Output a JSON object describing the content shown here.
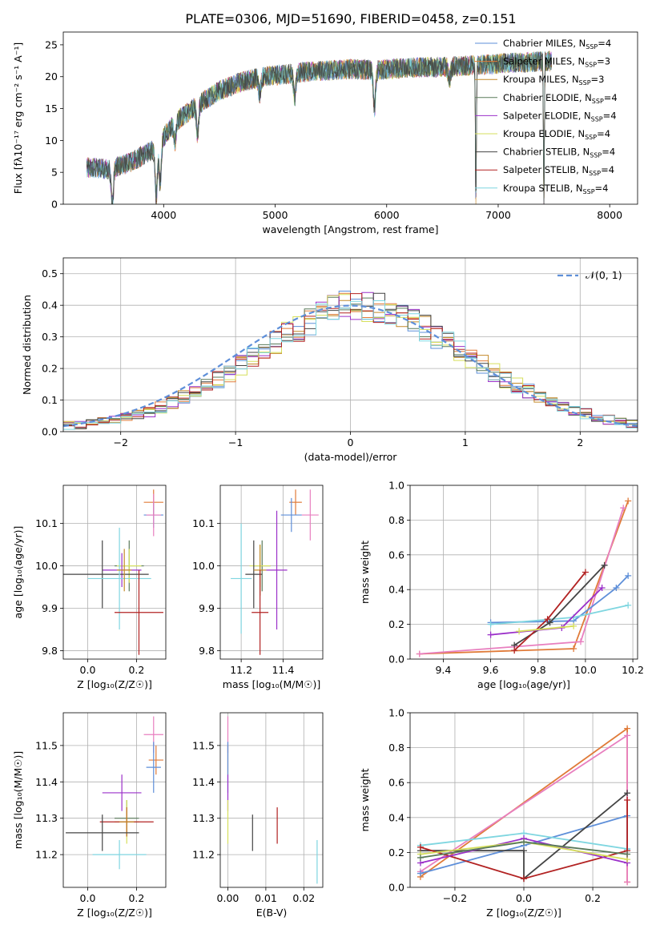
{
  "figure_title": "PLATE=0306, MJD=51690, FIBERID=0458, z=0.151",
  "colors": {
    "chabrier_miles": "#5e8fd9",
    "salpeter_miles": "#e07b39",
    "kroupa_miles": "#c48a2a",
    "chabrier_elodie": "#5a7a5a",
    "salpeter_elodie": "#9b30c9",
    "kroupa_elodie": "#d6df5c",
    "chabrier_stelib": "#444444",
    "salpeter_stelib": "#b22222",
    "kroupa_stelib": "#7fd6e0",
    "pink": "#e87fbf",
    "normal": "#5e8fd9"
  },
  "chart_data": [
    {
      "id": "spectrum",
      "type": "line",
      "title": "PLATE=0306, MJD=51690, FIBERID=0458, z=0.151",
      "xlabel": "wavelength [Angstrom, rest frame]",
      "ylabel": "Flux [fλ10⁻¹⁷ erg cm⁻² s⁻¹ A⁻¹]",
      "xlim": [
        3100,
        8250
      ],
      "ylim": [
        0,
        27
      ],
      "xticks": [
        4000,
        5000,
        6000,
        7000,
        8000
      ],
      "yticks": [
        0,
        5,
        10,
        15,
        20,
        25
      ],
      "grid": false,
      "legend_position": "top-right",
      "continuum": {
        "x": [
          3300,
          3500,
          3700,
          3900,
          4000,
          4100,
          4300,
          4500,
          4700,
          4900,
          5100,
          5300,
          5500,
          5700,
          5900,
          6100,
          6300,
          6500,
          6700,
          6900,
          7100,
          7300,
          7500
        ],
        "y": [
          5.8,
          5.5,
          6.5,
          8.5,
          10.5,
          12.8,
          15.5,
          17.8,
          19.2,
          20.0,
          20.4,
          20.8,
          21.0,
          21.2,
          21.0,
          21.3,
          21.5,
          21.5,
          21.7,
          21.9,
          22.2,
          22.3,
          22.5
        ]
      },
      "series": [
        {
          "name": "Chabrier MILES, N_SSP=4",
          "label_main": "Chabrier MILES, N",
          "label_sub": "SSP",
          "label_tail": "=4",
          "color_key": "chabrier_miles"
        },
        {
          "name": "Salpeter MILES, N_SSP=3",
          "label_main": "Salpeter MILES, N",
          "label_sub": "SSP",
          "label_tail": "=3",
          "color_key": "salpeter_miles"
        },
        {
          "name": "Kroupa MILES, N_SSP=3",
          "label_main": "Kroupa MILES, N",
          "label_sub": "SSP",
          "label_tail": "=3",
          "color_key": "kroupa_miles"
        },
        {
          "name": "Chabrier ELODIE, N_SSP=4",
          "label_main": "Chabrier ELODIE, N",
          "label_sub": "SSP",
          "label_tail": "=4",
          "color_key": "chabrier_elodie"
        },
        {
          "name": "Salpeter ELODIE, N_SSP=4",
          "label_main": "Salpeter ELODIE, N",
          "label_sub": "SSP",
          "label_tail": "=4",
          "color_key": "salpeter_elodie"
        },
        {
          "name": "Kroupa ELODIE, N_SSP=4",
          "label_main": "Kroupa ELODIE, N",
          "label_sub": "SSP",
          "label_tail": "=4",
          "color_key": "kroupa_elodie"
        },
        {
          "name": "Chabrier STELIB, N_SSP=4",
          "label_main": "Chabrier STELIB, N",
          "label_sub": "SSP",
          "label_tail": "=4",
          "color_key": "chabrier_stelib"
        },
        {
          "name": "Salpeter STELIB, N_SSP=4",
          "label_main": "Salpeter STELIB, N",
          "label_sub": "SSP",
          "label_tail": "=4",
          "color_key": "salpeter_stelib"
        },
        {
          "name": "Kroupa STELIB, N_SSP=4",
          "label_main": "Kroupa STELIB, N",
          "label_sub": "SSP",
          "label_tail": "=4",
          "color_key": "kroupa_stelib"
        }
      ],
      "absorption_features": [
        {
          "x": 3540,
          "depth": 5.8
        },
        {
          "x": 3934,
          "depth": 8.0
        },
        {
          "x": 3969,
          "depth": 6.5
        },
        {
          "x": 4102,
          "depth": 3.0
        },
        {
          "x": 4304,
          "depth": 4.5
        },
        {
          "x": 4861,
          "depth": 2.5
        },
        {
          "x": 5175,
          "depth": 4.0
        },
        {
          "x": 5890,
          "depth": 6.0
        },
        {
          "x": 6563,
          "depth": 2.0
        },
        {
          "x": 6800,
          "depth": 22.0
        },
        {
          "x": 7410,
          "depth": 23.0
        }
      ]
    },
    {
      "id": "residuals",
      "type": "step",
      "xlabel": "(data-model)/error",
      "ylabel": "Normed distribution",
      "xlim": [
        -2.5,
        2.5
      ],
      "ylim": [
        0,
        0.55
      ],
      "xticks": [
        -2,
        -1,
        0,
        1,
        2
      ],
      "yticks": [
        0.0,
        0.1,
        0.2,
        0.3,
        0.4,
        0.5
      ],
      "grid": true,
      "legend_position": "top-right",
      "normal_label": "𝒩(0, 1)",
      "bin_width": 0.1,
      "bin_start": -2.5,
      "histogram_series_keys": [
        "chabrier_miles",
        "salpeter_miles",
        "kroupa_miles",
        "chabrier_elodie",
        "salpeter_elodie",
        "kroupa_elodie",
        "chabrier_stelib",
        "salpeter_stelib",
        "kroupa_stelib"
      ],
      "base_profile": [
        0.02,
        0.022,
        0.026,
        0.031,
        0.038,
        0.045,
        0.054,
        0.064,
        0.077,
        0.092,
        0.108,
        0.125,
        0.144,
        0.163,
        0.186,
        0.21,
        0.234,
        0.258,
        0.283,
        0.306,
        0.328,
        0.35,
        0.37,
        0.384,
        0.396,
        0.404,
        0.398,
        0.39,
        0.378,
        0.364,
        0.347,
        0.327,
        0.305,
        0.282,
        0.258,
        0.235,
        0.211,
        0.188,
        0.166,
        0.146,
        0.127,
        0.109,
        0.094,
        0.08,
        0.067,
        0.057,
        0.047,
        0.038,
        0.031,
        0.025
      ]
    },
    {
      "id": "age_vs_Z",
      "type": "errorbar",
      "xlabel": "Z [log₁₀(Z/Z☉)]",
      "ylabel": "age  [log₁₀(age/yr)]",
      "xlim": [
        -0.1,
        0.32
      ],
      "ylim": [
        9.78,
        10.19
      ],
      "xticks": [
        0.0,
        0.2
      ],
      "yticks": [
        9.8,
        9.9,
        10.0,
        10.1
      ],
      "grid": true,
      "points": [
        {
          "color_key": "salpeter_miles",
          "x": 0.27,
          "y": 10.15,
          "xerr": 0.04,
          "yerr": 0.03
        },
        {
          "color_key": "chabrier_miles",
          "x": 0.27,
          "y": 10.12,
          "xerr": 0.04,
          "yerr": 0.03
        },
        {
          "color_key": "pink",
          "x": 0.27,
          "y": 10.12,
          "xerr": 0.03,
          "yerr": 0.05
        },
        {
          "color_key": "chabrier_elodie",
          "x": 0.17,
          "y": 10.0,
          "xerr": 0.06,
          "yerr": 0.06
        },
        {
          "color_key": "kroupa_elodie",
          "x": 0.17,
          "y": 10.0,
          "xerr": 0.05,
          "yerr": 0.04
        },
        {
          "color_key": "salpeter_elodie",
          "x": 0.14,
          "y": 9.99,
          "xerr": 0.08,
          "yerr": 0.04
        },
        {
          "color_key": "chabrier_stelib",
          "x": 0.06,
          "y": 9.98,
          "xerr": 0.19,
          "yerr": 0.08
        },
        {
          "color_key": "kroupa_stelib",
          "x": 0.13,
          "y": 9.97,
          "xerr": 0.13,
          "yerr": 0.12
        },
        {
          "color_key": "kroupa_miles",
          "x": 0.15,
          "y": 9.99,
          "xerr": 0.03,
          "yerr": 0.05
        },
        {
          "color_key": "salpeter_stelib",
          "x": 0.21,
          "y": 9.89,
          "xerr": 0.1,
          "yerr": 0.1
        }
      ]
    },
    {
      "id": "age_vs_mass",
      "type": "errorbar",
      "xlabel": "mass [log₁₀(M/M☉)]",
      "ylabel": "",
      "xlim": [
        11.1,
        11.59
      ],
      "ylim": [
        9.78,
        10.19
      ],
      "xticks": [
        11.2,
        11.4
      ],
      "yticks": [
        9.8,
        9.9,
        10.0,
        10.1
      ],
      "grid": true,
      "points": [
        {
          "color_key": "salpeter_miles",
          "x": 11.46,
          "y": 10.15,
          "xerr": 0.03,
          "yerr": 0.03
        },
        {
          "color_key": "chabrier_miles",
          "x": 11.44,
          "y": 10.12,
          "xerr": 0.05,
          "yerr": 0.04
        },
        {
          "color_key": "pink",
          "x": 11.53,
          "y": 10.12,
          "xerr": 0.04,
          "yerr": 0.06
        },
        {
          "color_key": "chabrier_elodie",
          "x": 11.3,
          "y": 10.0,
          "xerr": 0.04,
          "yerr": 0.06
        },
        {
          "color_key": "kroupa_elodie",
          "x": 11.29,
          "y": 10.0,
          "xerr": 0.05,
          "yerr": 0.05
        },
        {
          "color_key": "salpeter_elodie",
          "x": 11.37,
          "y": 9.99,
          "xerr": 0.05,
          "yerr": 0.14
        },
        {
          "color_key": "chabrier_stelib",
          "x": 11.26,
          "y": 9.98,
          "xerr": 0.04,
          "yerr": 0.08
        },
        {
          "color_key": "kroupa_stelib",
          "x": 11.2,
          "y": 9.97,
          "xerr": 0.05,
          "yerr": 0.13
        },
        {
          "color_key": "kroupa_miles",
          "x": 11.29,
          "y": 9.99,
          "xerr": 0.03,
          "yerr": 0.06
        },
        {
          "color_key": "salpeter_stelib",
          "x": 11.29,
          "y": 9.89,
          "xerr": 0.04,
          "yerr": 0.1
        }
      ]
    },
    {
      "id": "weight_vs_age",
      "type": "line",
      "xlabel": "age  [log₁₀(age/yr)]",
      "ylabel": "mass weight",
      "xlim": [
        9.26,
        10.22
      ],
      "ylim": [
        0.0,
        1.0
      ],
      "xticks": [
        9.4,
        9.6,
        9.8,
        10.0,
        10.2
      ],
      "yticks": [
        0.0,
        0.2,
        0.4,
        0.6,
        0.8,
        1.0
      ],
      "grid": true,
      "series": [
        {
          "color_key": "salpeter_miles",
          "x": [
            9.3,
            9.95,
            10.18
          ],
          "y": [
            0.03,
            0.06,
            0.91
          ]
        },
        {
          "color_key": "pink",
          "x": [
            9.3,
            9.98,
            10.16
          ],
          "y": [
            0.03,
            0.1,
            0.87
          ]
        },
        {
          "color_key": "chabrier_miles",
          "x": [
            9.6,
            9.95,
            10.13,
            10.18
          ],
          "y": [
            0.21,
            0.22,
            0.41,
            0.48
          ]
        },
        {
          "color_key": "kroupa_stelib",
          "x": [
            9.6,
            9.95,
            10.18
          ],
          "y": [
            0.2,
            0.24,
            0.31
          ]
        },
        {
          "color_key": "chabrier_stelib",
          "x": [
            9.7,
            9.85,
            10.08
          ],
          "y": [
            0.08,
            0.21,
            0.54
          ]
        },
        {
          "color_key": "salpeter_stelib",
          "x": [
            9.7,
            9.84,
            10.0
          ],
          "y": [
            0.05,
            0.23,
            0.5
          ]
        },
        {
          "color_key": "salpeter_elodie",
          "x": [
            9.6,
            9.9,
            10.07
          ],
          "y": [
            0.14,
            0.18,
            0.41
          ]
        },
        {
          "color_key": "kroupa_elodie",
          "x": [
            9.72,
            9.95
          ],
          "y": [
            0.16,
            0.19
          ]
        }
      ]
    },
    {
      "id": "mass_vs_Z",
      "type": "errorbar",
      "xlabel": "Z [log₁₀(Z/Z☉)]",
      "ylabel": "mass [log₁₀(M/M☉)]",
      "xlim": [
        -0.1,
        0.32
      ],
      "ylim": [
        11.11,
        11.59
      ],
      "xticks": [
        0.0,
        0.2
      ],
      "yticks": [
        11.2,
        11.3,
        11.4,
        11.5
      ],
      "grid": true,
      "points": [
        {
          "color_key": "pink",
          "x": 0.27,
          "y": 11.53,
          "xerr": 0.04,
          "yerr": 0.05
        },
        {
          "color_key": "salpeter_miles",
          "x": 0.28,
          "y": 11.46,
          "xerr": 0.03,
          "yerr": 0.04
        },
        {
          "color_key": "chabrier_miles",
          "x": 0.27,
          "y": 11.44,
          "xerr": 0.03,
          "yerr": 0.07
        },
        {
          "color_key": "salpeter_elodie",
          "x": 0.14,
          "y": 11.37,
          "xerr": 0.08,
          "yerr": 0.05
        },
        {
          "color_key": "chabrier_elodie",
          "x": 0.16,
          "y": 11.3,
          "xerr": 0.05,
          "yerr": 0.05
        },
        {
          "color_key": "kroupa_elodie",
          "x": 0.16,
          "y": 11.29,
          "xerr": 0.05,
          "yerr": 0.06
        },
        {
          "color_key": "salpeter_stelib",
          "x": 0.16,
          "y": 11.29,
          "xerr": 0.11,
          "yerr": 0.04
        },
        {
          "color_key": "kroupa_miles",
          "x": 0.16,
          "y": 11.29,
          "xerr": 0.03,
          "yerr": 0.04
        },
        {
          "color_key": "chabrier_stelib",
          "x": 0.06,
          "y": 11.26,
          "xerr": 0.15,
          "yerr": 0.05
        },
        {
          "color_key": "kroupa_stelib",
          "x": 0.13,
          "y": 11.2,
          "xerr": 0.11,
          "yerr": 0.04
        }
      ]
    },
    {
      "id": "mass_vs_ebv",
      "type": "errorbar",
      "xlabel": "E(B-V)",
      "ylabel": "",
      "xlim": [
        -0.002,
        0.025
      ],
      "ylim": [
        11.11,
        11.59
      ],
      "xticks": [
        0.0,
        0.01,
        0.02
      ],
      "xtick_labels": [
        "0.00",
        "0.01",
        "0.02"
      ],
      "yticks": [
        11.2,
        11.3,
        11.4,
        11.5
      ],
      "grid": true,
      "points": [
        {
          "color_key": "pink",
          "x": 0.0,
          "y": 11.53,
          "xerr": 0,
          "yerr": 0.05
        },
        {
          "color_key": "salpeter_miles",
          "x": 0.0,
          "y": 11.46,
          "xerr": 0,
          "yerr": 0.04
        },
        {
          "color_key": "chabrier_miles",
          "x": 0.0,
          "y": 11.44,
          "xerr": 0,
          "yerr": 0.07
        },
        {
          "color_key": "salpeter_elodie",
          "x": 0.0,
          "y": 11.37,
          "xerr": 0,
          "yerr": 0.05
        },
        {
          "color_key": "kroupa_elodie",
          "x": 0.0,
          "y": 11.29,
          "xerr": 0,
          "yerr": 0.06
        },
        {
          "color_key": "chabrier_stelib",
          "x": 0.0065,
          "y": 11.26,
          "xerr": 0,
          "yerr": 0.05
        },
        {
          "color_key": "salpeter_stelib",
          "x": 0.013,
          "y": 11.28,
          "xerr": 0,
          "yerr": 0.05
        },
        {
          "color_key": "kroupa_stelib",
          "x": 0.0235,
          "y": 11.18,
          "xerr": 0,
          "yerr": 0.06
        }
      ]
    },
    {
      "id": "weight_vs_Z",
      "type": "line",
      "xlabel": "Z [log₁₀(Z/Z☉)]",
      "ylabel": "mass weight",
      "xlim": [
        -0.33,
        0.33
      ],
      "ylim": [
        0.0,
        1.0
      ],
      "xticks": [
        -0.2,
        0.0,
        0.2
      ],
      "yticks": [
        0.0,
        0.2,
        0.4,
        0.6,
        0.8,
        1.0
      ],
      "grid": true,
      "series": [
        {
          "color_key": "salpeter_miles",
          "x": [
            -0.3,
            0.3,
            0.3
          ],
          "y": [
            0.06,
            0.91,
            0.03
          ]
        },
        {
          "color_key": "pink",
          "x": [
            -0.3,
            0.3,
            0.3
          ],
          "y": [
            0.09,
            0.87,
            0.03
          ]
        },
        {
          "color_key": "chabrier_miles",
          "x": [
            -0.3,
            0.0,
            0.3,
            0.3
          ],
          "y": [
            0.08,
            0.24,
            0.41,
            0.22
          ]
        },
        {
          "color_key": "kroupa_stelib",
          "x": [
            -0.3,
            0.0,
            0.3
          ],
          "y": [
            0.24,
            0.31,
            0.22
          ]
        },
        {
          "color_key": "chabrier_stelib",
          "x": [
            -0.3,
            0.0,
            0.0,
            0.3
          ],
          "y": [
            0.21,
            0.21,
            0.05,
            0.54
          ]
        },
        {
          "color_key": "salpeter_stelib",
          "x": [
            -0.3,
            0.0,
            0.3,
            0.3
          ],
          "y": [
            0.23,
            0.05,
            0.21,
            0.5
          ]
        },
        {
          "color_key": "salpeter_elodie",
          "x": [
            -0.3,
            0.0,
            0.3
          ],
          "y": [
            0.14,
            0.28,
            0.14
          ]
        },
        {
          "color_key": "kroupa_elodie",
          "x": [
            -0.3,
            0.0,
            0.3
          ],
          "y": [
            0.19,
            0.26,
            0.16
          ]
        },
        {
          "color_key": "chabrier_elodie",
          "x": [
            -0.3,
            0.0,
            0.3
          ],
          "y": [
            0.17,
            0.26,
            0.19
          ]
        }
      ]
    }
  ]
}
